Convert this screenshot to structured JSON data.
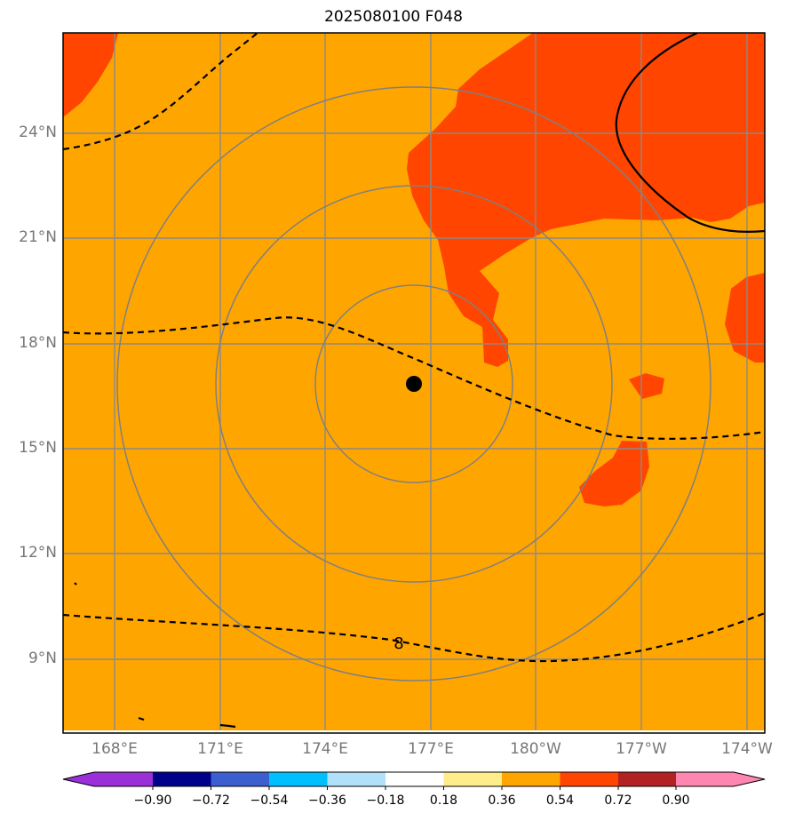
{
  "title": "2025080100 F048",
  "lat_labels": [
    "24°N",
    "21°N",
    "18°N",
    "15°N",
    "12°N",
    "9°N"
  ],
  "lon_labels": [
    "168°E",
    "171°E",
    "174°E",
    "177°E",
    "180°W",
    "177°W",
    "174°W"
  ],
  "contour_label": "8",
  "colorbar": {
    "tick_labels": [
      "−0.90",
      "−0.72",
      "−0.54",
      "−0.36",
      "−0.18",
      "0.18",
      "0.36",
      "0.54",
      "0.72",
      "0.90"
    ],
    "colors": [
      "#9b30d8",
      "#00008b",
      "#3c5fcf",
      "#00bfff",
      "#b0e0fa",
      "#ffffff",
      "#ffec8b",
      "#ffa500",
      "#ff4500",
      "#b22222",
      "#ff86b0"
    ]
  },
  "field_colors": {
    "background": "#ffa500",
    "high": "#ff4500"
  },
  "marker": {
    "name": "center-point"
  }
}
